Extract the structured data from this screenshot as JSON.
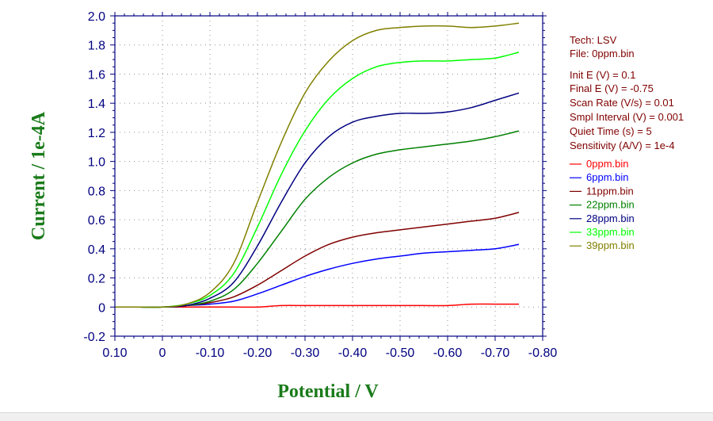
{
  "chart_data": {
    "type": "line",
    "xlabel": "Potential / V",
    "ylabel": "Current / 1e-4A",
    "xlim": [
      0.1,
      -0.8
    ],
    "ylim": [
      -0.2,
      2.0
    ],
    "x_ticks": [
      "0.10",
      "0",
      "-0.10",
      "-0.20",
      "-0.30",
      "-0.40",
      "-0.50",
      "-0.60",
      "-0.70",
      "-0.80"
    ],
    "y_ticks": [
      "-0.2",
      "0",
      "0.2",
      "0.4",
      "0.6",
      "0.8",
      "1.0",
      "1.2",
      "1.4",
      "1.6",
      "1.8",
      "2.0"
    ],
    "grid": true,
    "info": [
      "Tech: LSV",
      "File: 0ppm.bin",
      "Init E (V) = 0.1",
      "Final E (V) = -0.75",
      "Scan Rate (V/s) = 0.01",
      "Smpl Interval (V) = 0.001",
      "Quiet Time (s) = 5",
      "Sensitivity (A/V) = 1e-4"
    ],
    "x": [
      0.1,
      0.05,
      0.0,
      -0.05,
      -0.1,
      -0.15,
      -0.2,
      -0.25,
      -0.3,
      -0.35,
      -0.4,
      -0.45,
      -0.5,
      -0.55,
      -0.6,
      -0.65,
      -0.7,
      -0.75
    ],
    "series": [
      {
        "name": "0ppm.bin",
        "color": "#ff0000",
        "values": [
          0.0,
          0.0,
          0.0,
          0.0,
          0.0,
          0.0,
          0.0,
          0.01,
          0.01,
          0.01,
          0.01,
          0.01,
          0.01,
          0.01,
          0.01,
          0.02,
          0.02,
          0.02
        ]
      },
      {
        "name": "6ppm.bin",
        "color": "#0000ff",
        "values": [
          0.0,
          0.0,
          0.0,
          0.01,
          0.02,
          0.04,
          0.09,
          0.15,
          0.21,
          0.26,
          0.3,
          0.33,
          0.35,
          0.37,
          0.38,
          0.39,
          0.4,
          0.43
        ]
      },
      {
        "name": "11ppm.bin",
        "color": "#800000",
        "values": [
          0.0,
          0.0,
          0.0,
          0.01,
          0.03,
          0.07,
          0.15,
          0.25,
          0.35,
          0.43,
          0.48,
          0.51,
          0.53,
          0.55,
          0.57,
          0.59,
          0.61,
          0.65
        ]
      },
      {
        "name": "22ppm.bin",
        "color": "#008000",
        "values": [
          0.0,
          0.0,
          0.0,
          0.01,
          0.04,
          0.12,
          0.3,
          0.52,
          0.74,
          0.89,
          0.99,
          1.05,
          1.08,
          1.1,
          1.12,
          1.14,
          1.17,
          1.21
        ]
      },
      {
        "name": "28ppm.bin",
        "color": "#000080",
        "values": [
          0.0,
          0.0,
          0.0,
          0.01,
          0.06,
          0.17,
          0.42,
          0.72,
          0.99,
          1.17,
          1.27,
          1.31,
          1.33,
          1.33,
          1.34,
          1.37,
          1.42,
          1.47
        ]
      },
      {
        "name": "33ppm.bin",
        "color": "#00ff00",
        "values": [
          0.0,
          0.0,
          0.0,
          0.02,
          0.08,
          0.23,
          0.55,
          0.91,
          1.21,
          1.43,
          1.57,
          1.65,
          1.68,
          1.69,
          1.69,
          1.7,
          1.71,
          1.75
        ]
      },
      {
        "name": "39ppm.bin",
        "color": "#808000",
        "values": [
          0.0,
          0.0,
          0.0,
          0.02,
          0.1,
          0.3,
          0.72,
          1.13,
          1.47,
          1.69,
          1.83,
          1.9,
          1.92,
          1.93,
          1.93,
          1.92,
          1.93,
          1.95
        ]
      }
    ]
  }
}
